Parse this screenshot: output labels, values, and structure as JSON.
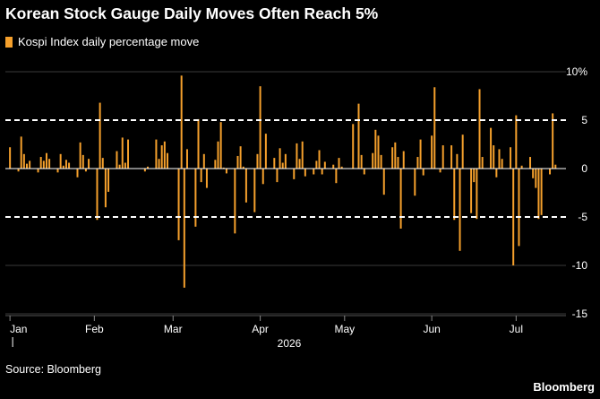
{
  "title": "Korean Stock Gauge Daily Moves Often Reach 5%",
  "source": "Source: Bloomberg",
  "brand": "Bloomberg",
  "colors": {
    "background": "#000000",
    "bar": "#f5a02c",
    "text": "#ffffff",
    "grid": "#3a3a3a",
    "reference": "#ffffff"
  },
  "chart_data": {
    "type": "bar",
    "legend": [
      "Kospi Index daily percentage move"
    ],
    "x_year_label": "2026",
    "x_ticks": [
      {
        "label": "Jan",
        "date": "2026-01-02"
      },
      {
        "label": "Feb",
        "date": "2026-02-01"
      },
      {
        "label": "Mar",
        "date": "2026-03-01"
      },
      {
        "label": "Apr",
        "date": "2026-04-01"
      },
      {
        "label": "May",
        "date": "2026-05-01"
      },
      {
        "label": "Jun",
        "date": "2026-06-01"
      },
      {
        "label": "Jul",
        "date": "2026-07-01"
      }
    ],
    "y_ticks": [
      {
        "value": 10,
        "label": "10%"
      },
      {
        "value": 5,
        "label": "5"
      },
      {
        "value": 0,
        "label": "0"
      },
      {
        "value": -5,
        "label": "-5"
      },
      {
        "value": -10,
        "label": "-10"
      },
      {
        "value": -15,
        "label": "-15"
      }
    ],
    "ylim": [
      -15,
      10
    ],
    "reference_lines": [
      5,
      -5
    ],
    "x_range": [
      "2026-01-01",
      "2026-07-20"
    ],
    "series": [
      {
        "name": "Kospi Index daily percentage move",
        "x": [
          "2026-01-02",
          "2026-01-05",
          "2026-01-06",
          "2026-01-07",
          "2026-01-08",
          "2026-01-09",
          "2026-01-12",
          "2026-01-13",
          "2026-01-14",
          "2026-01-15",
          "2026-01-16",
          "2026-01-19",
          "2026-01-20",
          "2026-01-21",
          "2026-01-22",
          "2026-01-23",
          "2026-01-26",
          "2026-01-27",
          "2026-01-28",
          "2026-01-29",
          "2026-01-30",
          "2026-02-02",
          "2026-02-03",
          "2026-02-04",
          "2026-02-05",
          "2026-02-06",
          "2026-02-09",
          "2026-02-10",
          "2026-02-11",
          "2026-02-12",
          "2026-02-13",
          "2026-02-19",
          "2026-02-20",
          "2026-02-23",
          "2026-02-24",
          "2026-02-25",
          "2026-02-26",
          "2026-02-27",
          "2026-03-03",
          "2026-03-04",
          "2026-03-05",
          "2026-03-06",
          "2026-03-09",
          "2026-03-10",
          "2026-03-11",
          "2026-03-12",
          "2026-03-13",
          "2026-03-16",
          "2026-03-17",
          "2026-03-18",
          "2026-03-19",
          "2026-03-20",
          "2026-03-23",
          "2026-03-24",
          "2026-03-25",
          "2026-03-26",
          "2026-03-27",
          "2026-03-30",
          "2026-03-31",
          "2026-04-01",
          "2026-04-02",
          "2026-04-03",
          "2026-04-06",
          "2026-04-07",
          "2026-04-08",
          "2026-04-09",
          "2026-04-10",
          "2026-04-13",
          "2026-04-14",
          "2026-04-15",
          "2026-04-16",
          "2026-04-17",
          "2026-04-20",
          "2026-04-21",
          "2026-04-22",
          "2026-04-23",
          "2026-04-24",
          "2026-04-27",
          "2026-04-28",
          "2026-04-29",
          "2026-04-30",
          "2026-05-04",
          "2026-05-06",
          "2026-05-07",
          "2026-05-08",
          "2026-05-11",
          "2026-05-12",
          "2026-05-13",
          "2026-05-14",
          "2026-05-15",
          "2026-05-18",
          "2026-05-19",
          "2026-05-20",
          "2026-05-21",
          "2026-05-22",
          "2026-05-26",
          "2026-05-27",
          "2026-05-28",
          "2026-05-29",
          "2026-06-01",
          "2026-06-02",
          "2026-06-04",
          "2026-06-05",
          "2026-06-08",
          "2026-06-09",
          "2026-06-10",
          "2026-06-11",
          "2026-06-12",
          "2026-06-15",
          "2026-06-16",
          "2026-06-17",
          "2026-06-18",
          "2026-06-19",
          "2026-06-22",
          "2026-06-23",
          "2026-06-24",
          "2026-06-25",
          "2026-06-26",
          "2026-06-29",
          "2026-06-30",
          "2026-07-01",
          "2026-07-02",
          "2026-07-03",
          "2026-07-06",
          "2026-07-07",
          "2026-07-08",
          "2026-07-09",
          "2026-07-10",
          "2026-07-13",
          "2026-07-14",
          "2026-07-15"
        ],
        "values": [
          2.2,
          -0.3,
          3.3,
          1.5,
          0.5,
          0.8,
          -0.4,
          1.2,
          0.8,
          1.6,
          1.0,
          -0.4,
          1.5,
          0.3,
          0.9,
          0.6,
          -0.9,
          2.7,
          1.4,
          -0.3,
          1.0,
          -5.3,
          6.8,
          1.1,
          -4.0,
          -2.4,
          1.8,
          0.4,
          3.2,
          0.6,
          3.0,
          -0.3,
          0.2,
          3.0,
          1.0,
          2.4,
          2.8,
          1.6,
          -7.4,
          9.6,
          -12.3,
          2.0,
          -6.0,
          5.1,
          -1.4,
          1.5,
          -2.0,
          0.9,
          2.8,
          4.8,
          0.1,
          -0.5,
          -6.7,
          1.3,
          2.3,
          0.2,
          -3.5,
          -4.5,
          1.5,
          8.5,
          -1.6,
          3.6,
          1.1,
          -1.4,
          2.1,
          0.6,
          1.5,
          -1.1,
          2.6,
          1.0,
          2.8,
          -0.8,
          -0.6,
          0.8,
          1.9,
          -0.6,
          0.7,
          0.4,
          -1.5,
          1.1,
          0.2,
          4.6,
          6.7,
          1.4,
          -0.6,
          1.6,
          4.0,
          3.4,
          1.4,
          -2.7,
          2.2,
          2.7,
          1.2,
          -6.2,
          1.8,
          -2.8,
          1.2,
          3.0,
          -0.7,
          3.4,
          8.4,
          -0.4,
          2.4,
          2.4,
          -5.3,
          1.5,
          -8.5,
          3.5,
          -4.6,
          -1.4,
          -5.2,
          8.2,
          1.2,
          4.2,
          2.4,
          -0.9,
          2.0,
          1.0,
          2.2,
          -10.0,
          5.5,
          -8.0,
          0.3,
          1.2,
          -1.0,
          -2.0,
          -5.2,
          -4.8,
          -0.6,
          5.7,
          0.4
        ]
      }
    ]
  }
}
